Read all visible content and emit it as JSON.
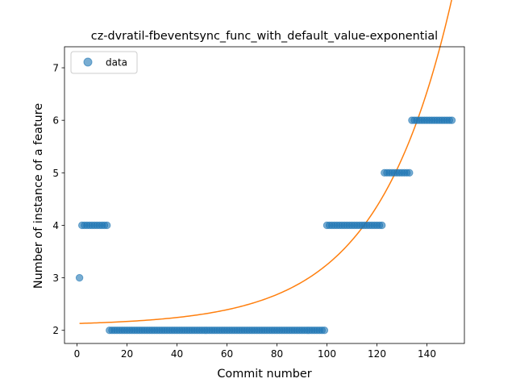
{
  "chart_data": {
    "type": "scatter",
    "title": "cz-dvratil-fbeventsync_func_with_default_value-exponential",
    "xlabel": "Commit number",
    "ylabel": "Number of instance of a feature",
    "xlim": [
      -5,
      155
    ],
    "ylim": [
      1.75,
      7.4
    ],
    "xticks": [
      0,
      20,
      40,
      60,
      80,
      100,
      120,
      140
    ],
    "yticks": [
      2,
      3,
      4,
      5,
      6,
      7
    ],
    "legend": {
      "position": "upper-left",
      "entries": [
        "data"
      ]
    },
    "colors": {
      "scatter": "#1f77b4",
      "fit": "#ff7f0e"
    },
    "scatter_segments": [
      {
        "x_start": 1,
        "x_end": 1,
        "y": 3
      },
      {
        "x_start": 2,
        "x_end": 12,
        "y": 4
      },
      {
        "x_start": 13,
        "x_end": 99,
        "y": 2
      },
      {
        "x_start": 100,
        "x_end": 122,
        "y": 4
      },
      {
        "x_start": 123,
        "x_end": 133,
        "y": 5
      },
      {
        "x_start": 134,
        "x_end": 150,
        "y": 6
      }
    ],
    "fit_curve": {
      "model": "a*exp(b*x)+c",
      "a": 0.0403,
      "b": 0.0336,
      "c": 2.09,
      "x_start": 1,
      "x_end": 150
    }
  }
}
